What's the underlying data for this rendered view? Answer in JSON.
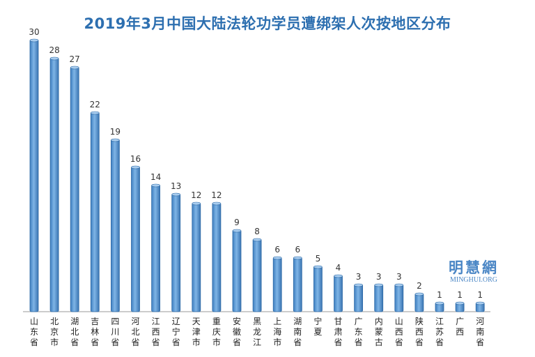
{
  "chart_data": {
    "type": "bar",
    "title": "2019年3月中国大陆法轮功学员遭绑架人次按地区分布",
    "xlabel": "",
    "ylabel": "",
    "ylim": [
      0,
      30
    ],
    "grid": false,
    "categories": [
      "山东省",
      "北京市",
      "湖北省",
      "吉林省",
      "四川省",
      "河北省",
      "江西省",
      "辽宁省",
      "天津市",
      "重庆市",
      "安徽省",
      "黑龙江",
      "上海市",
      "湖南省",
      "宁夏",
      "甘肃省",
      "广东省",
      "内蒙古",
      "山西省",
      "陕西省",
      "江苏省",
      "广西",
      "河南省"
    ],
    "values": [
      30,
      28,
      27,
      22,
      19,
      16,
      14,
      13,
      12,
      12,
      9,
      8,
      6,
      6,
      5,
      4,
      3,
      3,
      3,
      2,
      1,
      1,
      1
    ],
    "bar_color": "#5b9bd5",
    "bar_edge_color": "#2e6aa6"
  },
  "watermark": {
    "cn": "明慧網",
    "en": "MINGHUI.ORG"
  }
}
